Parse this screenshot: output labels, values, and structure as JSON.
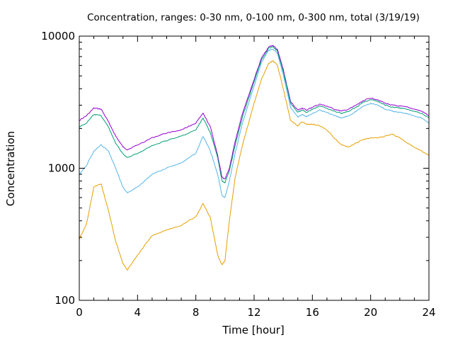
{
  "chart_data": {
    "type": "line",
    "title": "Concentration, ranges: 0-30 nm, 0-100 nm, 0-300 nm, total (3/19/19)",
    "xlabel": "Time [hour]",
    "ylabel": "Concentration",
    "xlim": [
      0,
      24
    ],
    "ylim": [
      100,
      10000
    ],
    "yscale": "log",
    "grid": false,
    "x_ticks": [
      0,
      4,
      8,
      12,
      16,
      20,
      24
    ],
    "x_tick_labels": [
      "0",
      "4",
      "8",
      "12",
      "16",
      "20",
      "24"
    ],
    "y_ticks": [
      100,
      1000,
      10000
    ],
    "y_tick_labels": [
      "100",
      "1000",
      "10000"
    ],
    "x": [
      0,
      0.5,
      1.0,
      1.5,
      2.0,
      2.5,
      3.0,
      3.3,
      4.0,
      5.0,
      6.0,
      7.0,
      8.0,
      8.5,
      9.0,
      9.5,
      9.8,
      10.0,
      10.3,
      10.7,
      11.2,
      12.0,
      12.5,
      13.0,
      13.3,
      13.6,
      14.0,
      14.5,
      15.0,
      15.3,
      15.6,
      16.0,
      16.5,
      17.0,
      17.5,
      18.0,
      18.5,
      19.0,
      19.5,
      20.0,
      20.5,
      21.0,
      21.5,
      22.0,
      22.5,
      23.0,
      23.5,
      24.0
    ],
    "series": [
      {
        "color": "#9400d3",
        "values": [
          2300,
          2500,
          2850,
          2800,
          2250,
          1750,
          1450,
          1380,
          1500,
          1700,
          1850,
          1950,
          2200,
          2600,
          2050,
          1250,
          850,
          830,
          1000,
          1600,
          2600,
          4700,
          6800,
          8300,
          8500,
          7900,
          5600,
          3200,
          2750,
          2850,
          2750,
          2900,
          3050,
          2950,
          2800,
          2700,
          2800,
          3000,
          3250,
          3400,
          3300,
          3100,
          3000,
          2950,
          2900,
          2800,
          2700,
          2500
        ]
      },
      {
        "color": "#009e73",
        "values": [
          2050,
          2200,
          2550,
          2500,
          2050,
          1550,
          1280,
          1200,
          1300,
          1480,
          1620,
          1750,
          1950,
          2400,
          1850,
          1200,
          800,
          780,
          950,
          1500,
          2450,
          4500,
          6600,
          8100,
          8300,
          7700,
          5400,
          3100,
          2650,
          2750,
          2650,
          2800,
          2950,
          2850,
          2700,
          2600,
          2700,
          2900,
          3150,
          3300,
          3200,
          3000,
          2900,
          2850,
          2800,
          2700,
          2600,
          2400
        ]
      },
      {
        "color": "#56b4e9",
        "values": [
          900,
          1050,
          1350,
          1500,
          1350,
          1000,
          720,
          650,
          720,
          900,
          1000,
          1100,
          1300,
          1750,
          1350,
          900,
          620,
          600,
          800,
          1300,
          2200,
          4200,
          6300,
          7800,
          8000,
          7400,
          5100,
          2900,
          2450,
          2550,
          2450,
          2600,
          2750,
          2650,
          2500,
          2400,
          2500,
          2700,
          2950,
          3100,
          3000,
          2800,
          2700,
          2650,
          2600,
          2500,
          2400,
          2200
        ]
      },
      {
        "color": "#e69f00",
        "values": [
          290,
          380,
          720,
          760,
          480,
          280,
          190,
          170,
          220,
          310,
          340,
          370,
          430,
          540,
          420,
          220,
          185,
          200,
          400,
          850,
          1500,
          3100,
          4700,
          6200,
          6500,
          6000,
          4000,
          2300,
          2100,
          2250,
          2150,
          2150,
          2100,
          1950,
          1700,
          1500,
          1450,
          1550,
          1650,
          1700,
          1700,
          1750,
          1800,
          1700,
          1550,
          1450,
          1350,
          1250
        ]
      }
    ]
  }
}
